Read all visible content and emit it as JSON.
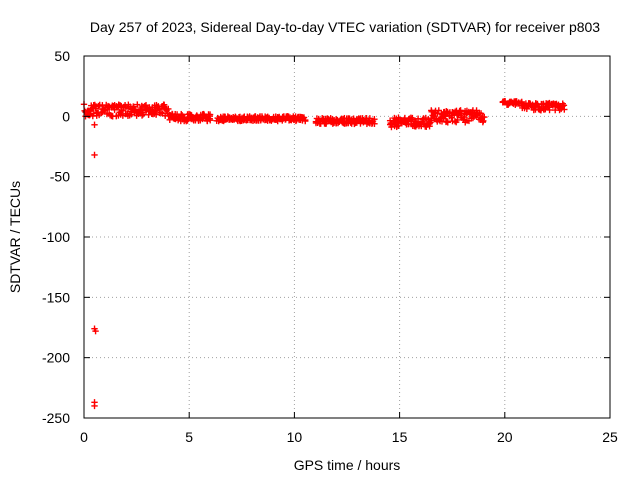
{
  "chart_data": {
    "type": "scatter",
    "title": "Day 257 of 2023, Sidereal Day-to-day VTEC variation (SDTVAR) for receiver p803",
    "xlabel": "GPS time / hours",
    "ylabel": "SDTVAR / TECUs",
    "xlim": [
      0,
      25
    ],
    "ylim": [
      -250,
      50
    ],
    "xticks": [
      0,
      5,
      10,
      15,
      20,
      25
    ],
    "yticks": [
      50,
      0,
      -50,
      -100,
      -150,
      -200,
      -250
    ],
    "grid": true,
    "marker": "+",
    "series": [
      {
        "name": "SDTVAR",
        "color": "#ff0000",
        "segments": [
          {
            "x_start": 0.0,
            "x_end": 4.0,
            "y_center": 5,
            "spread": 5
          },
          {
            "x_start": 4.0,
            "x_end": 6.0,
            "y_center": -1,
            "spread": 3
          },
          {
            "x_start": 6.3,
            "x_end": 10.5,
            "y_center": -2,
            "spread": 2
          },
          {
            "x_start": 11.0,
            "x_end": 13.8,
            "y_center": -4,
            "spread": 2.5
          },
          {
            "x_start": 14.5,
            "x_end": 16.5,
            "y_center": -5,
            "spread": 4
          },
          {
            "x_start": 16.5,
            "x_end": 19.0,
            "y_center": 0,
            "spread": 5
          },
          {
            "x_start": 19.9,
            "x_end": 20.8,
            "y_center": 11,
            "spread": 1.5
          },
          {
            "x_start": 20.8,
            "x_end": 22.8,
            "y_center": 8,
            "spread": 3
          }
        ],
        "outliers": [
          {
            "x": 0.5,
            "y": -7
          },
          {
            "x": 0.5,
            "y": -32
          },
          {
            "x": 0.5,
            "y": -176
          },
          {
            "x": 0.55,
            "y": -178
          },
          {
            "x": 0.5,
            "y": -237
          },
          {
            "x": 0.5,
            "y": -240
          }
        ]
      }
    ]
  }
}
